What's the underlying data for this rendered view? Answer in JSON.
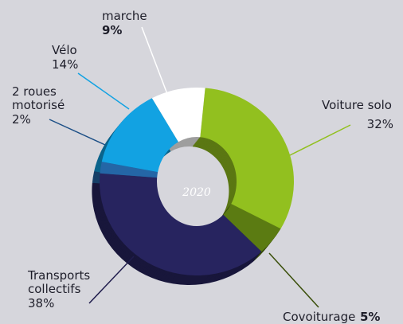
{
  "chart_data": {
    "type": "pie",
    "donut": true,
    "center_label": "2020",
    "categories": [
      "Voiture solo",
      "Covoiturage",
      "Transports collectifs",
      "2 roues motorisé",
      "Vélo",
      "marche"
    ],
    "values": [
      32,
      5,
      38,
      2,
      14,
      9
    ],
    "value_labels": [
      "32%",
      "5%",
      "38%",
      "2%",
      "14%",
      "9%"
    ],
    "colors": [
      "#92c01f",
      "#5b7b12",
      "#27245f",
      "#2466a6",
      "#12a2e2",
      "#ffffff"
    ]
  }
}
